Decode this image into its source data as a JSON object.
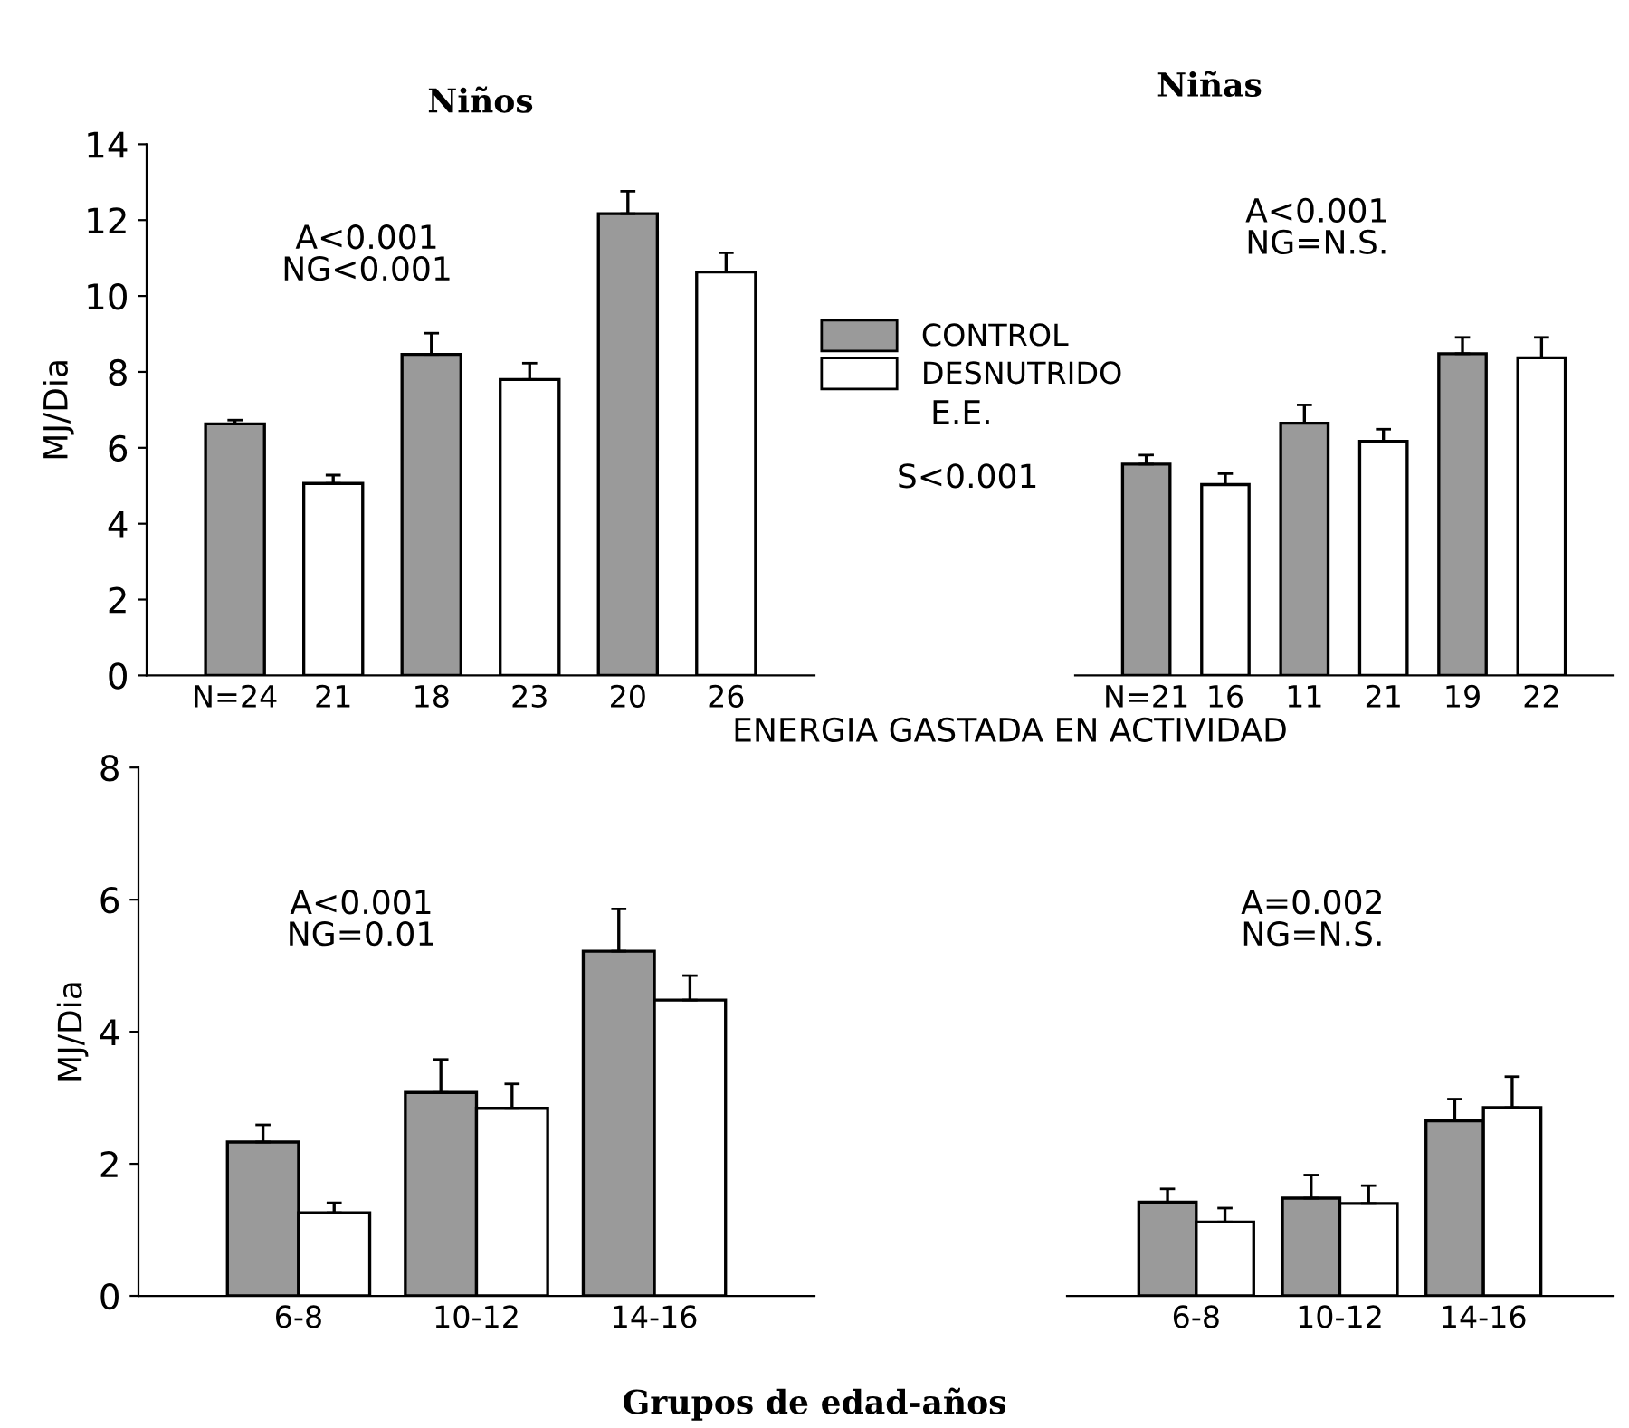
{
  "chart_data": [
    {
      "type": "bar",
      "title": "Niños",
      "ylabel": "MJ/Dia",
      "categories": [
        "N=24",
        "21",
        "18",
        "23",
        "20",
        "26"
      ],
      "ylim": [
        0,
        14
      ],
      "yticks": [
        0,
        2,
        4,
        6,
        8,
        10,
        12,
        14
      ],
      "legend": "right",
      "tick_labels": "xy",
      "annotations": [
        "A<0.001\nNG<0.001",
        "E.E."
      ],
      "series": [
        {
          "name": "CONTROL",
          "color": "#9a9a9a",
          "values": [
            6.63,
            null,
            8.46,
            null,
            12.17,
            null
          ],
          "errors": [
            [
              6.63,
              6.73
            ],
            null,
            [
              8.46,
              9.02
            ],
            null,
            [
              12.17,
              12.76
            ],
            null
          ]
        },
        {
          "name": "DESNUTRIDO",
          "color": "#ffffff",
          "values": [
            null,
            5.06,
            null,
            7.8,
            null,
            10.63
          ],
          "errors": [
            null,
            [
              5.06,
              5.28
            ],
            null,
            [
              7.8,
              8.23
            ],
            null,
            [
              10.63,
              11.14
            ]
          ]
        }
      ]
    },
    {
      "type": "bar",
      "title": "Niñas",
      "categories": [
        "N=21",
        "16",
        "11",
        "21",
        "19",
        "22"
      ],
      "ylim": [
        0,
        14
      ],
      "tick_labels": "x",
      "annotations": [
        "A<0.001\nNG=N.S.",
        "S<0.001"
      ],
      "series": [
        {
          "color": "#9a9a9a",
          "values": [
            5.57,
            null,
            6.65,
            null,
            8.48,
            null
          ],
          "errors": [
            [
              5.57,
              5.81
            ],
            null,
            [
              6.65,
              7.13
            ],
            null,
            [
              8.48,
              8.91
            ],
            null
          ]
        },
        {
          "color": "#ffffff",
          "values": [
            null,
            5.03,
            null,
            6.17,
            null,
            8.37
          ],
          "errors": [
            null,
            [
              5.03,
              5.32
            ],
            null,
            [
              6.17,
              6.49
            ],
            null,
            [
              8.37,
              8.91
            ]
          ]
        }
      ]
    },
    {
      "type": "bar",
      "title": "ENERGIA GASTADA EN ACTIVIDAD",
      "ylabel": "MJ/Dia",
      "xlabel": "Grupos de edad-años",
      "categories": [
        "6-8",
        "10-12",
        "14-16"
      ],
      "ylim": [
        0,
        8
      ],
      "yticks": [
        0,
        2,
        4,
        6,
        8
      ],
      "tick_labels": "xy",
      "annotations": [
        "A<0.001\nNG=0.01"
      ],
      "series": [
        {
          "color": "#9a9a9a",
          "values": [
            2.33,
            3.08,
            5.22
          ],
          "errors": [
            [
              2.33,
              2.59
            ],
            [
              3.08,
              3.58
            ],
            [
              5.22,
              5.86
            ]
          ]
        },
        {
          "color": "#ffffff",
          "values": [
            1.26,
            2.84,
            4.48
          ],
          "errors": [
            [
              1.26,
              1.41
            ],
            [
              2.84,
              3.21
            ],
            [
              4.48,
              4.85
            ]
          ]
        }
      ]
    },
    {
      "type": "bar",
      "categories": [
        "6-8",
        "10-12",
        "14-16"
      ],
      "ylim": [
        0,
        8
      ],
      "tick_labels": "x",
      "annotations": [
        "A=0.002\nNG=N.S."
      ],
      "series": [
        {
          "color": "#9a9a9a",
          "values": [
            1.42,
            1.48,
            2.65
          ],
          "errors": [
            [
              1.42,
              1.62
            ],
            [
              1.48,
              1.83
            ],
            [
              2.65,
              2.98
            ]
          ]
        },
        {
          "color": "#ffffff",
          "values": [
            1.12,
            1.4,
            2.85
          ],
          "errors": [
            [
              1.12,
              1.33
            ],
            [
              1.4,
              1.67
            ],
            [
              2.85,
              3.32
            ]
          ]
        }
      ]
    }
  ]
}
